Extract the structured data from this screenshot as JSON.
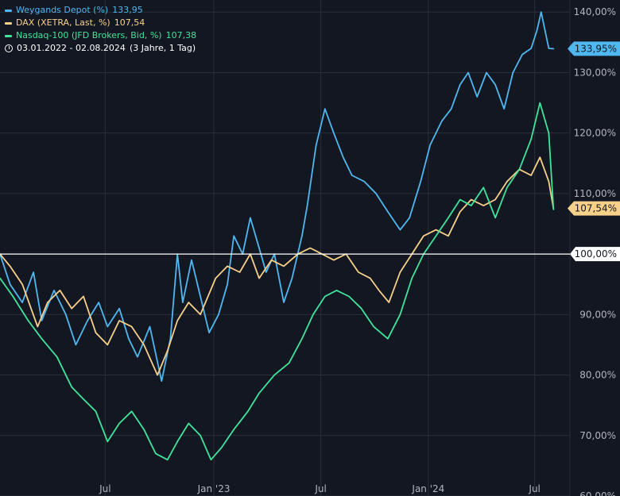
{
  "legend": {
    "series": [
      {
        "label": "Weygands Depot (%)",
        "value": "133,95",
        "color": "#4fb8f0"
      },
      {
        "label": "DAX (XETRA, Last, %)",
        "value": "107,54",
        "color": "#f7d08a"
      },
      {
        "label": "Nasdaq-100 (JFD Brokers, Bid, %)",
        "value": "107,38",
        "color": "#3ee59b"
      }
    ],
    "period": "03.01.2022 - 02.08.2024",
    "period_note": "(3 Jahre, 1 Tag)",
    "clock_icon": "clock-icon"
  },
  "chart_data": {
    "type": "line",
    "y_axis": {
      "ticks": [
        "60,00%",
        "70,00%",
        "80,00%",
        "90,00%",
        "100,00%",
        "110,00%",
        "120,00%",
        "130,00%",
        "140,00%"
      ],
      "tick_values": [
        60,
        70,
        80,
        90,
        100,
        110,
        120,
        130,
        140
      ],
      "ylim": [
        60,
        142
      ],
      "baseline": 100,
      "baseline_label": "100,00%"
    },
    "x_axis": {
      "ticks": [
        "Jul",
        "Jan '23",
        "Jul",
        "Jan '24",
        "Jul"
      ],
      "tick_dates": [
        "2022-07-01",
        "2023-01-02",
        "2023-07-03",
        "2024-01-02",
        "2024-07-01"
      ],
      "xlim": [
        "2022-01-03",
        "2024-08-30"
      ]
    },
    "price_labels": [
      {
        "text": "133,95%",
        "value": 133.95,
        "color": "#4fb8f0"
      },
      {
        "text": "107,54%",
        "value": 107.54,
        "color": "#f7d08a"
      }
    ],
    "series": [
      {
        "name": "Weygands Depot (%)",
        "color": "#4fb8f0",
        "x": [
          "2022-01-03",
          "2022-01-20",
          "2022-02-10",
          "2022-03-01",
          "2022-03-15",
          "2022-04-05",
          "2022-04-25",
          "2022-05-12",
          "2022-06-01",
          "2022-06-20",
          "2022-07-05",
          "2022-07-25",
          "2022-08-10",
          "2022-08-25",
          "2022-09-15",
          "2022-10-05",
          "2022-10-20",
          "2022-11-01",
          "2022-11-10",
          "2022-11-25",
          "2022-12-10",
          "2022-12-25",
          "2023-01-10",
          "2023-01-25",
          "2023-02-05",
          "2023-02-20",
          "2023-03-05",
          "2023-03-20",
          "2023-04-01",
          "2023-04-15",
          "2023-05-01",
          "2023-05-15",
          "2023-06-01",
          "2023-06-10",
          "2023-06-25",
          "2023-07-10",
          "2023-07-25",
          "2023-08-10",
          "2023-08-25",
          "2023-09-15",
          "2023-10-05",
          "2023-10-25",
          "2023-11-15",
          "2023-12-01",
          "2023-12-20",
          "2024-01-05",
          "2024-01-25",
          "2024-02-10",
          "2024-02-25",
          "2024-03-10",
          "2024-03-25",
          "2024-04-10",
          "2024-04-25",
          "2024-05-10",
          "2024-05-25",
          "2024-06-10",
          "2024-06-25",
          "2024-07-05",
          "2024-07-12",
          "2024-07-25",
          "2024-08-02"
        ],
        "values": [
          100,
          95,
          92,
          97,
          89,
          94,
          90,
          85,
          89,
          92,
          88,
          91,
          86,
          83,
          88,
          79,
          86,
          100,
          92,
          99,
          93,
          87,
          90,
          95,
          103,
          100,
          106,
          101,
          97,
          100,
          92,
          96,
          103,
          108,
          118,
          124,
          120,
          116,
          113,
          112,
          110,
          107,
          104,
          106,
          112,
          118,
          122,
          124,
          128,
          130,
          126,
          130,
          128,
          124,
          130,
          133,
          134,
          137,
          140,
          134,
          133.95
        ]
      },
      {
        "name": "DAX (XETRA, Last, %)",
        "color": "#f7d08a",
        "x": [
          "2022-01-03",
          "2022-01-20",
          "2022-02-10",
          "2022-03-08",
          "2022-03-25",
          "2022-04-15",
          "2022-05-05",
          "2022-05-25",
          "2022-06-15",
          "2022-07-05",
          "2022-07-25",
          "2022-08-15",
          "2022-09-05",
          "2022-09-28",
          "2022-10-15",
          "2022-11-01",
          "2022-11-20",
          "2022-12-10",
          "2023-01-05",
          "2023-01-25",
          "2023-02-15",
          "2023-03-05",
          "2023-03-20",
          "2023-04-10",
          "2023-05-01",
          "2023-05-25",
          "2023-06-15",
          "2023-07-05",
          "2023-07-25",
          "2023-08-15",
          "2023-09-05",
          "2023-09-25",
          "2023-10-10",
          "2023-10-27",
          "2023-11-15",
          "2023-12-05",
          "2023-12-25",
          "2024-01-15",
          "2024-02-05",
          "2024-02-25",
          "2024-03-15",
          "2024-04-05",
          "2024-04-25",
          "2024-05-15",
          "2024-06-05",
          "2024-06-25",
          "2024-07-10",
          "2024-07-25",
          "2024-08-02"
        ],
        "values": [
          100,
          98,
          95,
          88,
          92,
          94,
          91,
          93,
          87,
          85,
          89,
          88,
          85,
          80,
          84,
          89,
          92,
          90,
          96,
          98,
          97,
          100,
          96,
          99,
          98,
          100,
          101,
          100,
          99,
          100,
          97,
          96,
          94,
          92,
          97,
          100,
          103,
          104,
          103,
          107,
          109,
          108,
          109,
          112,
          114,
          113,
          116,
          112,
          107.54
        ]
      },
      {
        "name": "Nasdaq-100 (JFD Brokers, Bid, %)",
        "color": "#3ee59b",
        "x": [
          "2022-01-03",
          "2022-01-25",
          "2022-02-20",
          "2022-03-15",
          "2022-04-10",
          "2022-05-05",
          "2022-05-25",
          "2022-06-15",
          "2022-07-05",
          "2022-07-25",
          "2022-08-15",
          "2022-09-05",
          "2022-09-25",
          "2022-10-15",
          "2022-11-01",
          "2022-11-20",
          "2022-12-10",
          "2022-12-28",
          "2023-01-15",
          "2023-02-05",
          "2023-03-01",
          "2023-03-20",
          "2023-04-15",
          "2023-05-10",
          "2023-06-01",
          "2023-06-20",
          "2023-07-10",
          "2023-07-30",
          "2023-08-20",
          "2023-09-10",
          "2023-10-01",
          "2023-10-25",
          "2023-11-15",
          "2023-12-05",
          "2023-12-25",
          "2024-01-15",
          "2024-02-05",
          "2024-02-25",
          "2024-03-15",
          "2024-04-05",
          "2024-04-25",
          "2024-05-15",
          "2024-06-05",
          "2024-06-25",
          "2024-07-10",
          "2024-07-25",
          "2024-08-02"
        ],
        "values": [
          96,
          93,
          89,
          86,
          83,
          78,
          76,
          74,
          69,
          72,
          74,
          71,
          67,
          66,
          69,
          72,
          70,
          66,
          68,
          71,
          74,
          77,
          80,
          82,
          86,
          90,
          93,
          94,
          93,
          91,
          88,
          86,
          90,
          96,
          100,
          103,
          106,
          109,
          108,
          111,
          106,
          111,
          114,
          119,
          125,
          120,
          107.38
        ]
      }
    ]
  }
}
